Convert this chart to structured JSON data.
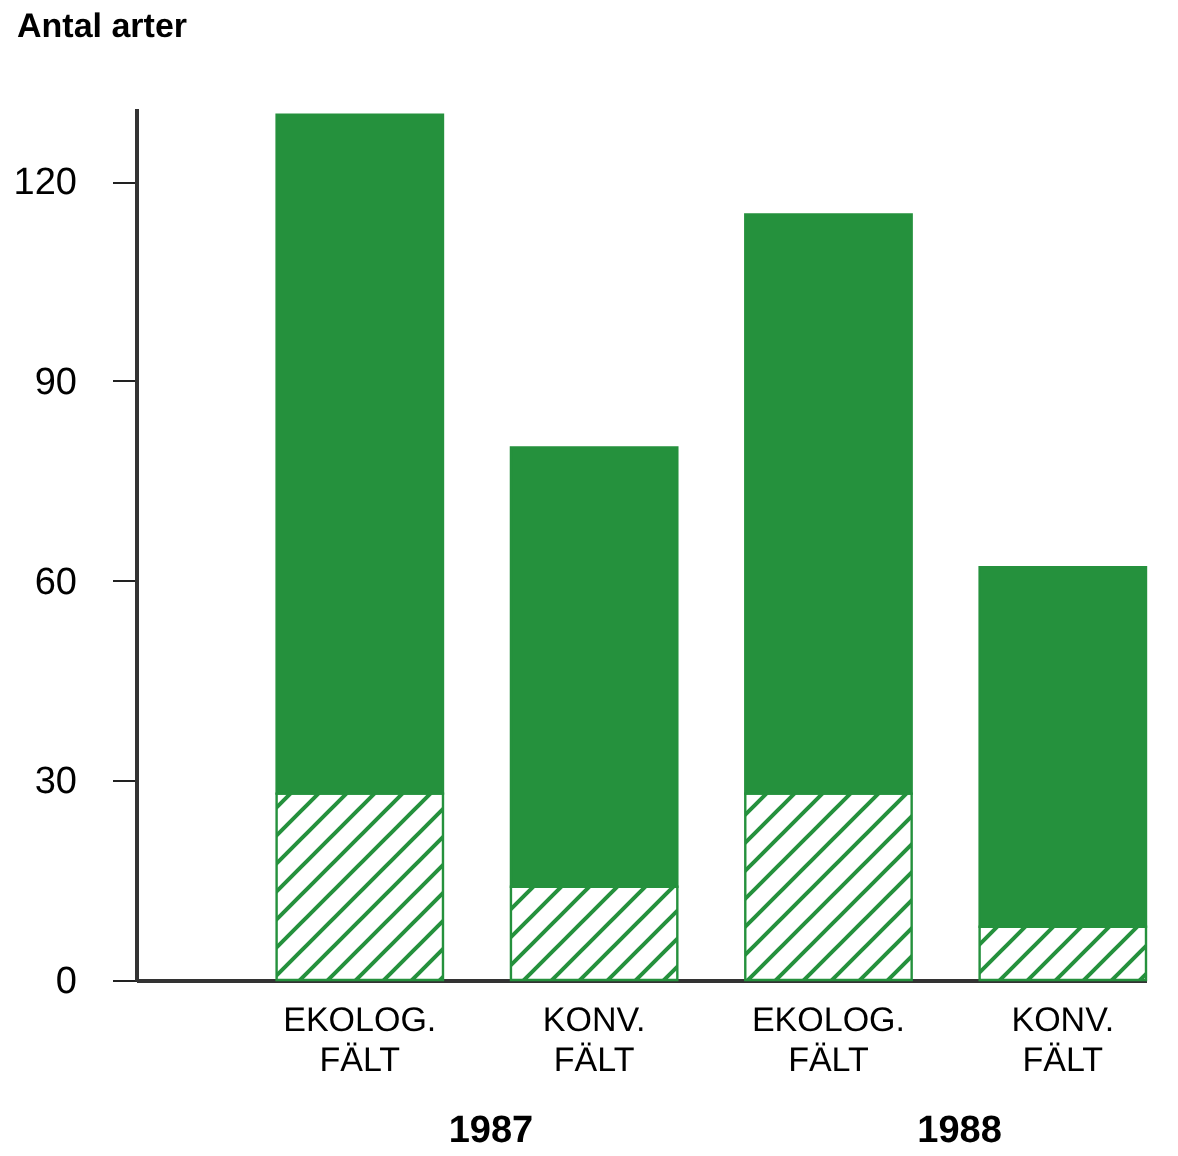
{
  "chart_data": {
    "type": "bar",
    "ylabel": "Antal arter",
    "stacked": true,
    "categories": [
      "EKOLOG.\nFÄLT",
      "KONV.\nFÄLT",
      "EKOLOG.\nFÄLT",
      "KONV.\nFÄLT"
    ],
    "series": [
      {
        "color": "#25913d",
        "values": [
          28,
          14,
          28,
          8
        ]
      },
      {
        "color": "#25913d",
        "values": [
          102,
          66,
          87,
          54
        ]
      }
    ],
    "ylim": [
      0,
      131
    ],
    "yticks": [
      0,
      30,
      60,
      90,
      120
    ],
    "grid": false,
    "annotations": [
      "1987",
      "1988"
    ]
  }
}
